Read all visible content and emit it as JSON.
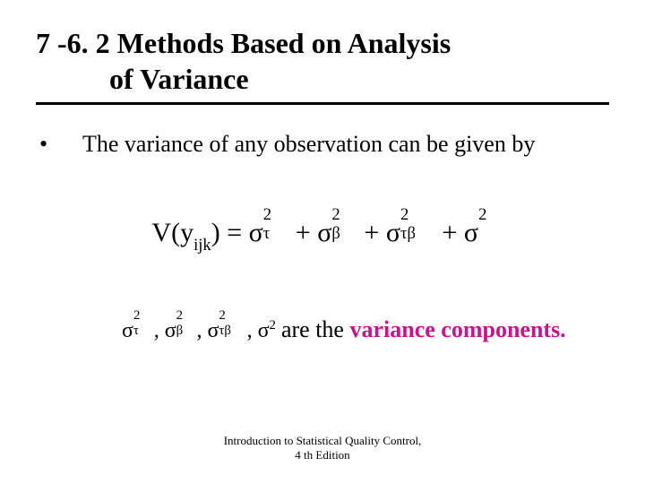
{
  "title": {
    "line1": "7 -6. 2 Methods Based on Analysis",
    "line2": "of Variance"
  },
  "rule_color": "#000000",
  "bullet": {
    "mark": "•",
    "text": "The variance of any observation can be given by"
  },
  "equation": {
    "lhs_V": "V(",
    "lhs_y": "y",
    "lhs_y_sub": "ijk",
    "lhs_close": ")",
    "eq": " = ",
    "sigma": "σ",
    "sup2": "2",
    "sub_tau": "τ",
    "sub_beta": "β",
    "sub_taubeta": "τβ",
    "plus": " + "
  },
  "components": {
    "list_prefix_sigma": "σ",
    "list_sup2": "2",
    "list_sub_tau": "τ",
    "list_sub_beta": "β",
    "list_sub_taubeta": "τβ",
    "comma": ",  ",
    "tail_pre": " are the ",
    "highlight": "variance components.",
    "highlight_color": "#c7158a"
  },
  "footer": {
    "line1": "Introduction to Statistical Quality Control,",
    "line2": "4 th Edition"
  }
}
